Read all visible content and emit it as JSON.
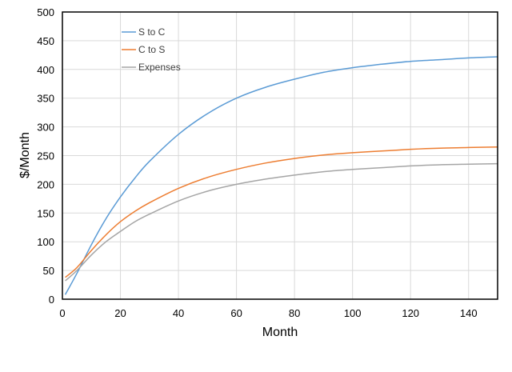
{
  "chart_data": {
    "type": "line",
    "title": "",
    "xlabel": "Month",
    "ylabel": "$/Month",
    "xlim": [
      0,
      150
    ],
    "ylim": [
      0,
      500
    ],
    "x_ticks": [
      "0",
      "20",
      "40",
      "60",
      "80",
      "100",
      "120",
      "140"
    ],
    "y_ticks": [
      "0",
      "50",
      "100",
      "150",
      "200",
      "250",
      "300",
      "350",
      "400",
      "450",
      "500"
    ],
    "grid": true,
    "legend_position": "top-left",
    "series": [
      {
        "name": "S to C",
        "color": "#5b9bd5",
        "x": [
          1,
          5,
          10,
          15,
          20,
          25,
          30,
          40,
          50,
          60,
          70,
          80,
          90,
          100,
          110,
          120,
          130,
          140,
          150
        ],
        "values": [
          8,
          45,
          95,
          140,
          178,
          211,
          240,
          287,
          323,
          350,
          369,
          383,
          395,
          403,
          409,
          414,
          417,
          420,
          422
        ]
      },
      {
        "name": "C to S",
        "color": "#ed7d31",
        "x": [
          1,
          5,
          10,
          15,
          20,
          25,
          30,
          40,
          50,
          60,
          70,
          80,
          90,
          100,
          110,
          120,
          130,
          140,
          150
        ],
        "values": [
          38,
          55,
          85,
          112,
          135,
          153,
          168,
          193,
          212,
          226,
          237,
          245,
          251,
          255,
          258,
          261,
          263,
          264,
          265
        ]
      },
      {
        "name": "Expenses",
        "color": "#a5a5a5",
        "x": [
          1,
          5,
          10,
          15,
          20,
          25,
          30,
          40,
          50,
          60,
          70,
          80,
          90,
          100,
          110,
          120,
          130,
          140,
          150
        ],
        "values": [
          32,
          50,
          77,
          100,
          118,
          135,
          148,
          171,
          188,
          200,
          209,
          216,
          222,
          226,
          229,
          232,
          234,
          235,
          236
        ]
      }
    ]
  }
}
